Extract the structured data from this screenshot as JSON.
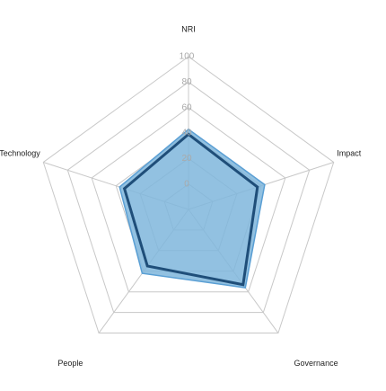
{
  "chart_data": {
    "type": "radar",
    "categories": [
      "NRI",
      "Impact",
      "Governance",
      "People",
      "Technology"
    ],
    "series": [
      {
        "color": "#7fb6dc",
        "filled": true,
        "values": [
          43,
          43,
          56,
          42,
          37
        ]
      },
      {
        "color": "#1f4e79",
        "filled": false,
        "values": [
          39,
          37,
          53,
          35,
          33
        ]
      }
    ],
    "ylim": [
      -20,
      100
    ],
    "yticks": [
      0,
      20,
      40,
      60,
      80,
      100
    ],
    "grid": true
  }
}
